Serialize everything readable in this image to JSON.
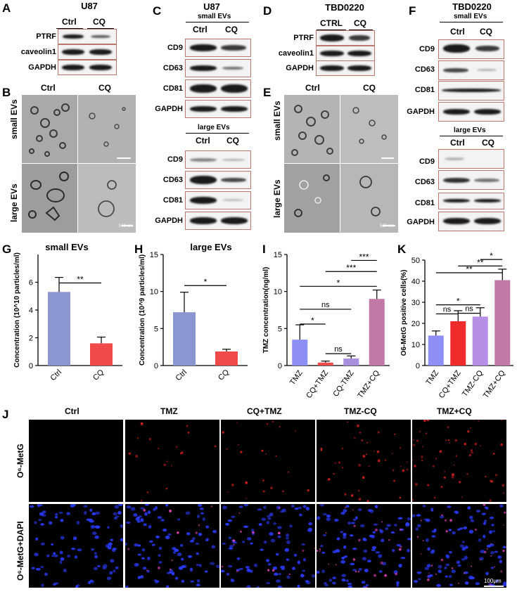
{
  "panels": {
    "A": {
      "label": "A",
      "title": "U87",
      "cols": [
        "Ctrl",
        "CQ"
      ],
      "rows": [
        "PTRF",
        "caveolin1",
        "GAPDH"
      ]
    },
    "B": {
      "label": "B",
      "cols": [
        "Ctrl",
        "CQ"
      ],
      "rows": [
        "small EVs",
        "large EVs"
      ],
      "scale": "500 nm"
    },
    "C": {
      "label": "C",
      "title": "U87",
      "small_hdr": "small EVs",
      "large_hdr": "large EVs",
      "cols": [
        "Ctrl",
        "CQ"
      ],
      "rows_small": [
        "CD9",
        "CD63",
        "CD81",
        "GAPDH"
      ],
      "rows_large": [
        "CD9",
        "CD63",
        "CD81",
        "GAPDH"
      ]
    },
    "D": {
      "label": "D",
      "title": "TBD0220",
      "cols": [
        "CTRL",
        "CQ"
      ],
      "rows": [
        "PTRF",
        "caveolin1",
        "GAPDH"
      ]
    },
    "E": {
      "label": "E",
      "cols": [
        "Ctrl",
        "CQ"
      ],
      "rows": [
        "small EVs",
        "large EVs"
      ],
      "scale": "500 nm"
    },
    "F": {
      "label": "F",
      "title": "TBD0220",
      "small_hdr": "small EVs",
      "large_hdr": "large EVs",
      "cols": [
        "Ctrl",
        "CQ"
      ],
      "rows_small": [
        "CD9",
        "CD63",
        "CD81",
        "GAPDH"
      ],
      "rows_large": [
        "CD9",
        "CD63",
        "CD81",
        "GAPDH"
      ]
    },
    "G": {
      "label": "G"
    },
    "H": {
      "label": "H"
    },
    "I": {
      "label": "I"
    },
    "K": {
      "label": "K"
    },
    "J": {
      "label": "J",
      "cols": [
        "Ctrl",
        "TMZ",
        "CQ+TMZ",
        "TMZ-CQ",
        "TMZ+CQ"
      ],
      "row1": "O⁶-MetG",
      "row2": "O⁶-MetG+DAPI",
      "scale": "100μm"
    }
  },
  "chart_data": [
    {
      "id": "G",
      "type": "bar",
      "title": "small EVs",
      "ylabel": "Concentration (10^10 particles/ml)",
      "categories": [
        "Ctrl",
        "CQ"
      ],
      "values": [
        5.3,
        1.6
      ],
      "errors": [
        1.05,
        0.45
      ],
      "colors": [
        "#8b95d0",
        "#f04a4a"
      ],
      "ylim": [
        0,
        8
      ],
      "yticks": [
        "0",
        "2",
        "4",
        "6"
      ],
      "ytick_vals": [
        0,
        2,
        4,
        6
      ],
      "annotations": [
        {
          "between": [
            0,
            1
          ],
          "level": 5.95,
          "text": "**"
        }
      ]
    },
    {
      "id": "H",
      "type": "bar",
      "title": "large EVs",
      "ylabel": "Concentration (10^9 particles/ml)",
      "categories": [
        "Ctrl",
        "CQ"
      ],
      "values": [
        7.2,
        1.9
      ],
      "errors": [
        2.7,
        0.3
      ],
      "colors": [
        "#8b95d0",
        "#f04a4a"
      ],
      "ylim": [
        0,
        15
      ],
      "yticks": [
        "0",
        "5",
        "10",
        "15"
      ],
      "ytick_vals": [
        0,
        5,
        10,
        15
      ],
      "annotations": [
        {
          "between": [
            0,
            1
          ],
          "level": 10.8,
          "text": "*"
        }
      ]
    },
    {
      "id": "I",
      "type": "bar",
      "ylabel": "TMZ concentration(ng/ml)",
      "categories": [
        "TMZ",
        "CQ+TMZ",
        "CQ-TMZ",
        "TMZ+CQ"
      ],
      "values": [
        3.5,
        0.4,
        0.95,
        9.0
      ],
      "errors": [
        2.0,
        0.2,
        0.35,
        1.2
      ],
      "colors": [
        "#8d8ff6",
        "#f04a4a",
        "#a990de",
        "#c07aa5"
      ],
      "ylim": [
        0,
        15
      ],
      "yticks": [
        "0",
        "5",
        "10",
        "15"
      ],
      "ytick_vals": [
        0,
        5,
        10,
        15
      ],
      "annotations": [
        {
          "between": [
            0,
            1
          ],
          "level": 5.6,
          "text": "*"
        },
        {
          "between": [
            0,
            2
          ],
          "level": 7.6,
          "text": "ns"
        },
        {
          "between": [
            1,
            2
          ],
          "level": 1.6,
          "text": "ns"
        },
        {
          "between": [
            0,
            3
          ],
          "level": 10.7,
          "text": "*"
        },
        {
          "between": [
            1,
            3
          ],
          "level": 12.7,
          "text": "***"
        },
        {
          "between": [
            2,
            3
          ],
          "level": 14.2,
          "text": "***"
        }
      ]
    },
    {
      "id": "K",
      "type": "bar",
      "ylabel": "O6-MetG  positive  cells(%)",
      "categories": [
        "TMZ",
        "CQ+TMZ",
        "TMZ-CQ",
        "TMZ+CQ"
      ],
      "values": [
        14.2,
        21.0,
        23.2,
        40.5
      ],
      "errors": [
        2.2,
        5.0,
        4.2,
        5.2
      ],
      "colors": [
        "#8d8ff6",
        "#f02b2b",
        "#b58ee6",
        "#c07aa5"
      ],
      "ylim": [
        0,
        50
      ],
      "yticks": [
        "0",
        "10",
        "20",
        "30",
        "40",
        "50"
      ],
      "ytick_vals": [
        0,
        10,
        20,
        30,
        40,
        50
      ],
      "annotations": [
        {
          "between": [
            0,
            1
          ],
          "level": 24.5,
          "text": "ns"
        },
        {
          "between": [
            1,
            2
          ],
          "level": 24.8,
          "text": "ns"
        },
        {
          "between": [
            0,
            2
          ],
          "level": 28.8,
          "text": "*"
        },
        {
          "between": [
            0,
            3
          ],
          "level": 44.0,
          "text": "**"
        },
        {
          "between": [
            1,
            3
          ],
          "level": 47.2,
          "text": "**"
        },
        {
          "between": [
            2,
            3
          ],
          "level": 50.3,
          "text": "*"
        }
      ]
    }
  ]
}
